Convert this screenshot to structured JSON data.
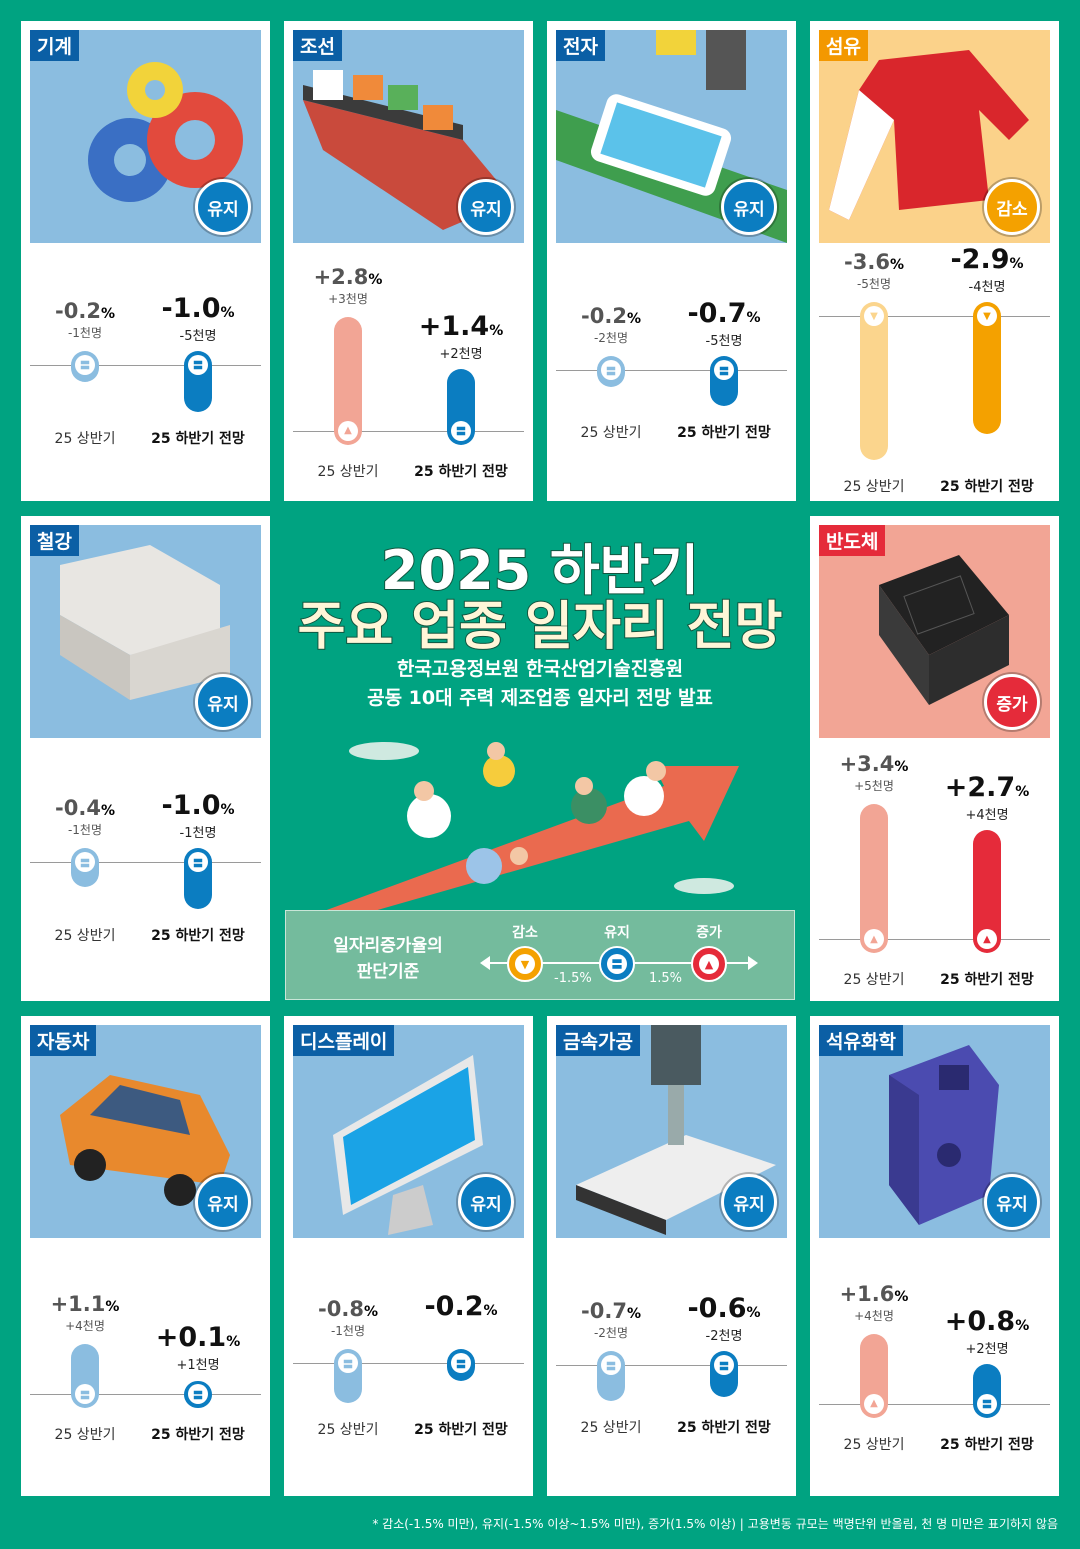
{
  "title_line1": "2025 하반기",
  "title_line2": "주요 업종 일자리 전망",
  "subtitle_line1": "한국고용정보원 한국산업기술진흥원",
  "subtitle_line2": "공동 10대 주력 제조업종 일자리 전망 발표",
  "period_labels": {
    "h1": "25 상반기",
    "h2": "25 하반기 전망"
  },
  "status_colors": {
    "유지": {
      "light": "#8bbde0",
      "dark": "#0b7dc1",
      "icon": "equal-icon"
    },
    "감소": {
      "light": "#fbd58d",
      "dark": "#f4a100",
      "icon": "down-triangle-icon"
    },
    "증가": {
      "light": "#f2a595",
      "dark": "#e52b3a",
      "icon": "up-triangle-icon"
    }
  },
  "cards": [
    {
      "name": "기계",
      "status": "유지",
      "image_bg": "#8bbde0",
      "image": "gears",
      "h1": {
        "value": "-0.2",
        "count": "-1천명",
        "status": "유지"
      },
      "h2": {
        "value": "-1.0",
        "count": "-5천명",
        "status": "유지"
      }
    },
    {
      "name": "조선",
      "status": "유지",
      "image_bg": "#8bbde0",
      "image": "ship",
      "h1": {
        "value": "+2.8",
        "count": "+3천명",
        "status": "증가"
      },
      "h2": {
        "value": "+1.4",
        "count": "+2천명",
        "status": "유지"
      }
    },
    {
      "name": "전자",
      "status": "유지",
      "image_bg": "#8bbde0",
      "image": "phone-conveyor",
      "h1": {
        "value": "-0.2",
        "count": "-2천명",
        "status": "유지"
      },
      "h2": {
        "value": "-0.7",
        "count": "-5천명",
        "status": "유지"
      }
    },
    {
      "name": "섬유",
      "status": "감소",
      "image_bg": "#fbd28a",
      "image": "jacket",
      "h1": {
        "value": "-3.6",
        "count": "-5천명",
        "status": "감소"
      },
      "h2": {
        "value": "-2.9",
        "count": "-4천명",
        "status": "감소"
      }
    },
    {
      "name": "철강",
      "status": "유지",
      "image_bg": "#8bbde0",
      "image": "steel-beams",
      "h1": {
        "value": "-0.4",
        "count": "-1천명",
        "status": "유지"
      },
      "h2": {
        "value": "-1.0",
        "count": "-1천명",
        "status": "유지"
      }
    },
    {
      "name": "반도체",
      "status": "증가",
      "image_bg": "#f2a595",
      "image": "chip",
      "h1": {
        "value": "+3.4",
        "count": "+5천명",
        "status": "증가"
      },
      "h2": {
        "value": "+2.7",
        "count": "+4천명",
        "status": "증가"
      }
    },
    {
      "name": "자동차",
      "status": "유지",
      "image_bg": "#8bbde0",
      "image": "car",
      "h1": {
        "value": "+1.1",
        "count": "+4천명",
        "status": "유지"
      },
      "h2": {
        "value": "+0.1",
        "count": "+1천명",
        "status": "유지"
      }
    },
    {
      "name": "디스플레이",
      "status": "유지",
      "image_bg": "#8bbde0",
      "image": "monitor",
      "h1": {
        "value": "-0.8",
        "count": "-1천명",
        "status": "유지"
      },
      "h2": {
        "value": "-0.2",
        "count": "",
        "status": "유지"
      }
    },
    {
      "name": "금속가공",
      "status": "유지",
      "image_bg": "#8bbde0",
      "image": "drill",
      "h1": {
        "value": "-0.7",
        "count": "-2천명",
        "status": "유지"
      },
      "h2": {
        "value": "-0.6",
        "count": "-2천명",
        "status": "유지"
      }
    },
    {
      "name": "석유화학",
      "status": "유지",
      "image_bg": "#8bbde0",
      "image": "jerry-can",
      "h1": {
        "value": "+1.6",
        "count": "+4천명",
        "status": "증가"
      },
      "h2": {
        "value": "+0.8",
        "count": "+2천명",
        "status": "유지"
      }
    }
  ],
  "percent_sign": "%",
  "legend": {
    "title_line1": "일자리증가율의",
    "title_line2": "판단기준",
    "decrease": "감소",
    "maintain": "유지",
    "increase": "증가",
    "low_threshold": "-1.5%",
    "high_threshold": "1.5%"
  },
  "footnote": "* 감소(-1.5% 미만), 유지(-1.5% 이상~1.5% 미만), 증가(1.5% 이상)  |  고용변동 규모는 백명단위 반올림, 천 명 미만은 표기하지 않음",
  "chart_data": {
    "type": "bar",
    "categories": [
      "기계",
      "조선",
      "전자",
      "섬유",
      "철강",
      "반도체",
      "자동차",
      "디스플레이",
      "금속가공",
      "석유화학"
    ],
    "series": [
      {
        "name": "25 상반기",
        "values": [
          -0.2,
          2.8,
          -0.2,
          -3.6,
          -0.4,
          3.4,
          1.1,
          -0.8,
          -0.7,
          1.6
        ],
        "employment_change_thousand": [
          -1,
          3,
          -2,
          -5,
          -1,
          5,
          4,
          -1,
          -2,
          4
        ]
      },
      {
        "name": "25 하반기 전망",
        "values": [
          -1.0,
          1.4,
          -0.7,
          -2.9,
          -1.0,
          2.7,
          0.1,
          -0.2,
          -0.6,
          0.8
        ],
        "employment_change_thousand": [
          -5,
          2,
          -5,
          -4,
          -1,
          4,
          1,
          null,
          -2,
          2
        ]
      }
    ],
    "unit": "%",
    "thresholds": [
      -1.5,
      1.5
    ]
  }
}
